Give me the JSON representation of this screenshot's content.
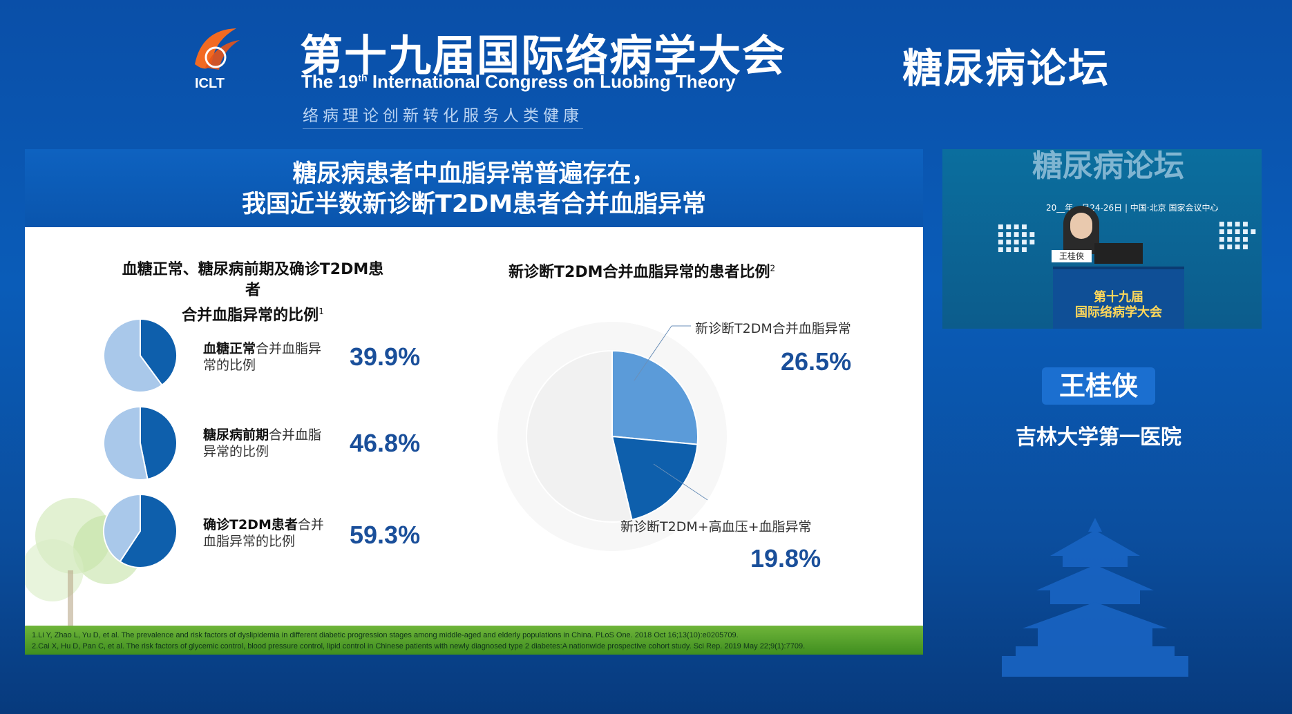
{
  "header": {
    "logo_text": "ICLT",
    "title_cn": "第十九届国际络病学大会",
    "title_en_pre": "The 19",
    "title_en_sup": "th",
    "title_en_post": " International Congress on Luobing Theory",
    "slogan": "络病理论创新转化服务人类健康",
    "forum": "糖尿病论坛"
  },
  "slide": {
    "title_line1": "糖尿病患者中血脂异常普遍存在，",
    "title_line2": "我国近半数新诊断T2DM患者合并血脂异常",
    "left_title_line1": "血糖正常、糖尿病前期及确诊T2DM患者",
    "left_title_line2": "合并血脂异常的比例",
    "left_title_ref": "1",
    "right_title": "新诊断T2DM合并血脂异常的患者比例",
    "right_title_ref": "2",
    "rows": [
      {
        "label_bold": "血糖正常",
        "label_rest": "合并血脂异常的比例",
        "value_text": "39.9%"
      },
      {
        "label_bold": "糖尿病前期",
        "label_rest": "合并血脂异常的比例",
        "value_text": "46.8%"
      },
      {
        "label_bold": "确诊T2DM患者",
        "label_rest": "合并血脂异常的比例",
        "value_text": "59.3%"
      }
    ],
    "big_pie": {
      "label_a": "新诊断T2DM合并血脂异常",
      "value_a": "26.5%",
      "label_b": "新诊断T2DM+高血压+血脂异常",
      "value_b": "19.8%"
    },
    "refs": [
      "1.Li Y, Zhao L, Yu D, et al. The prevalence and risk factors of dyslipidemia in different diabetic progression stages among middle-aged and elderly populations in China. PLoS One. 2018 Oct 16;13(10):e0205709.",
      "2.Cai X, Hu D, Pan C, et al. The risk factors of glycemic control, blood pressure control, lipid control in Chinese patients with newly diagnosed type 2 diabetes:A nationwide prospective cohort study. Sci Rep. 2019 May 22;9(1):7709."
    ]
  },
  "chart_data": [
    {
      "type": "pie",
      "categories": [
        "血糖正常合并血脂异常的比例",
        "其他"
      ],
      "values": [
        39.9,
        60.1
      ],
      "colors": [
        "#0e5fac",
        "#a9c8ea"
      ]
    },
    {
      "type": "pie",
      "categories": [
        "糖尿病前期合并血脂异常的比例",
        "其他"
      ],
      "values": [
        46.8,
        53.2
      ],
      "colors": [
        "#0e5fac",
        "#a9c8ea"
      ]
    },
    {
      "type": "pie",
      "categories": [
        "确诊T2DM患者合并血脂异常的比例",
        "其他"
      ],
      "values": [
        59.3,
        40.7
      ],
      "colors": [
        "#0e5fac",
        "#a9c8ea"
      ]
    },
    {
      "type": "pie",
      "title": "新诊断T2DM合并血脂异常的患者比例",
      "categories": [
        "新诊断T2DM合并血脂异常",
        "新诊断T2DM+高血压+血脂异常",
        "其他"
      ],
      "values": [
        26.5,
        19.8,
        53.7
      ],
      "colors": [
        "#5b9bd9",
        "#0e5fac",
        "#f1f1f1"
      ]
    }
  ],
  "video": {
    "banner": "糖尿病论坛",
    "date_text": "20__年__月24-26日 | 中国·北京 国家会议中心",
    "nameplate": "王桂侠",
    "podium_line1": "第十九届",
    "podium_line2": "国际络病学大会"
  },
  "speaker": {
    "name": "王桂侠",
    "org": "吉林大学第一医院"
  },
  "colors": {
    "background": "#0a5cb8",
    "accent_dark": "#0e5fac",
    "accent_light": "#a9c8ea",
    "value_text": "#1a4f9a"
  }
}
